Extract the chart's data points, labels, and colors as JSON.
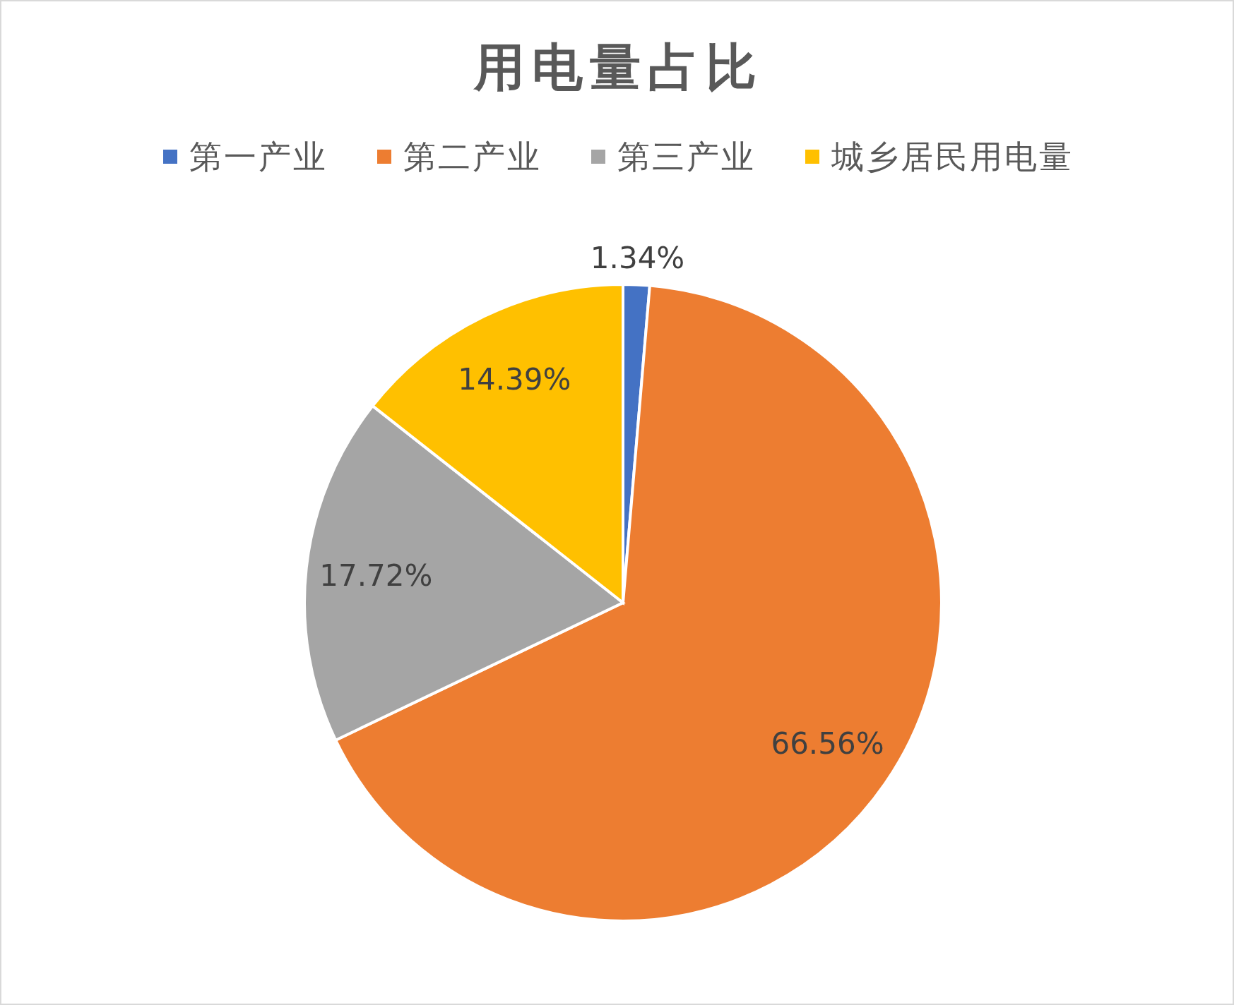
{
  "chart_data": {
    "type": "pie",
    "title": "用电量占比",
    "categories": [
      "第一产业",
      "第二产业",
      "第三产业",
      "城乡居民用电量"
    ],
    "values": [
      1.34,
      66.56,
      17.72,
      14.39
    ],
    "colors": [
      "#4472c4",
      "#ed7d31",
      "#a5a5a5",
      "#ffc000"
    ],
    "value_labels": [
      "1.34%",
      "66.56%",
      "17.72%",
      "14.39%"
    ],
    "legend": "top"
  }
}
